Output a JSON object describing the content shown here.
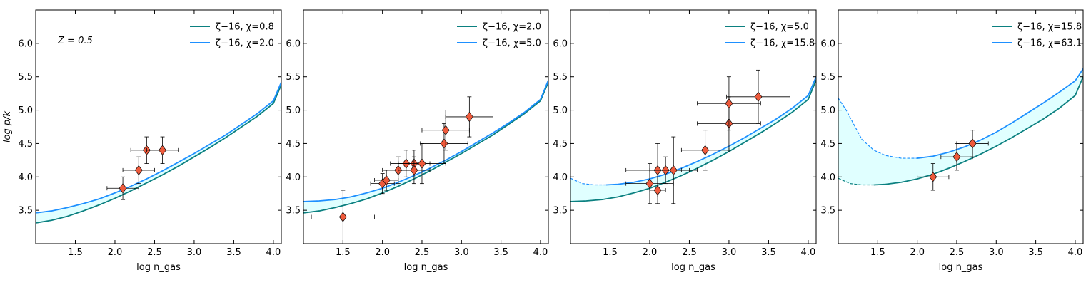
{
  "figure": {
    "ylabel": "log p/k",
    "annotation": "Z = 0.5"
  },
  "chart_data": [
    {
      "type": "line",
      "panel": 1,
      "xlabel": "log n_gas",
      "ylabel": "log p/k",
      "xlim": [
        1.0,
        4.1
      ],
      "ylim": [
        3.0,
        6.5
      ],
      "xticks": [
        "1.5",
        "2.0",
        "2.5",
        "3.0",
        "3.5",
        "4.0"
      ],
      "yticks": [
        "3.5",
        "4.0",
        "4.5",
        "5.0",
        "5.5",
        "6.0"
      ],
      "annotation": "Z = 0.5",
      "series": [
        {
          "name": "ζ−16, χ=0.8",
          "color": "#0b8080",
          "x": [
            1.0,
            1.2,
            1.4,
            1.6,
            1.8,
            2.0,
            2.2,
            2.4,
            2.6,
            2.8,
            3.0,
            3.2,
            3.4,
            3.6,
            3.8,
            4.0,
            4.1
          ],
          "y": [
            3.31,
            3.35,
            3.41,
            3.49,
            3.58,
            3.68,
            3.79,
            3.91,
            4.03,
            4.16,
            4.3,
            4.44,
            4.59,
            4.75,
            4.91,
            5.1,
            5.38
          ]
        },
        {
          "name": "ζ−16, χ=2.0",
          "color": "#1e90ff",
          "x": [
            1.0,
            1.2,
            1.4,
            1.6,
            1.8,
            2.0,
            2.2,
            2.4,
            2.6,
            2.8,
            3.0,
            3.2,
            3.4,
            3.6,
            3.8,
            4.0,
            4.1
          ],
          "y": [
            3.46,
            3.49,
            3.54,
            3.6,
            3.67,
            3.76,
            3.86,
            3.97,
            4.09,
            4.22,
            4.35,
            4.49,
            4.63,
            4.79,
            4.95,
            5.14,
            5.42
          ]
        }
      ],
      "points": [
        {
          "x": 2.1,
          "y": 3.83,
          "xerr": 0.2,
          "yerr": 0.17
        },
        {
          "x": 2.3,
          "y": 4.1,
          "xerr": 0.2,
          "yerr": 0.2
        },
        {
          "x": 2.4,
          "y": 4.4,
          "xerr": 0.2,
          "yerr": 0.2
        },
        {
          "x": 2.6,
          "y": 4.4,
          "xerr": 0.2,
          "yerr": 0.2
        }
      ]
    },
    {
      "type": "line",
      "panel": 2,
      "xlabel": "log n_gas",
      "xlim": [
        1.0,
        4.1
      ],
      "ylim": [
        3.0,
        6.5
      ],
      "xticks": [
        "1.5",
        "2.0",
        "2.5",
        "3.0",
        "3.5",
        "4.0"
      ],
      "yticks": [
        "3.5",
        "4.0",
        "4.5",
        "5.0",
        "5.5",
        "6.0"
      ],
      "series": [
        {
          "name": "ζ−16, χ=2.0",
          "color": "#0b8080",
          "x": [
            1.0,
            1.2,
            1.4,
            1.6,
            1.8,
            2.0,
            2.2,
            2.4,
            2.6,
            2.8,
            3.0,
            3.2,
            3.4,
            3.6,
            3.8,
            4.0,
            4.1
          ],
          "y": [
            3.46,
            3.49,
            3.54,
            3.6,
            3.67,
            3.76,
            3.86,
            3.97,
            4.09,
            4.22,
            4.35,
            4.49,
            4.63,
            4.79,
            4.95,
            5.14,
            5.42
          ]
        },
        {
          "name": "ζ−16, χ=5.0",
          "color": "#1e90ff",
          "x": [
            1.0,
            1.2,
            1.4,
            1.6,
            1.8,
            2.0,
            2.2,
            2.4,
            2.6,
            2.8,
            3.0,
            3.2,
            3.4,
            3.6,
            3.8,
            4.0,
            4.1
          ],
          "y": [
            3.63,
            3.64,
            3.66,
            3.7,
            3.76,
            3.83,
            3.92,
            4.02,
            4.13,
            4.25,
            4.38,
            4.52,
            4.66,
            4.81,
            4.97,
            5.16,
            5.45
          ]
        }
      ],
      "points": [
        {
          "x": 1.5,
          "y": 3.4,
          "xerr": 0.4,
          "yerr": 0.4
        },
        {
          "x": 2.0,
          "y": 3.9,
          "xerr": 0.15,
          "yerr": 0.15
        },
        {
          "x": 2.05,
          "y": 3.95,
          "xerr": 0.15,
          "yerr": 0.15
        },
        {
          "x": 2.2,
          "y": 4.1,
          "xerr": 0.2,
          "yerr": 0.2
        },
        {
          "x": 2.3,
          "y": 4.2,
          "xerr": 0.2,
          "yerr": 0.2
        },
        {
          "x": 2.4,
          "y": 4.2,
          "xerr": 0.2,
          "yerr": 0.2
        },
        {
          "x": 2.4,
          "y": 4.1,
          "xerr": 0.2,
          "yerr": 0.2
        },
        {
          "x": 2.5,
          "y": 4.2,
          "xerr": 0.3,
          "yerr": 0.3
        },
        {
          "x": 2.78,
          "y": 4.5,
          "xerr": 0.3,
          "yerr": 0.3
        },
        {
          "x": 2.8,
          "y": 4.7,
          "xerr": 0.3,
          "yerr": 0.3
        },
        {
          "x": 3.1,
          "y": 4.9,
          "xerr": 0.3,
          "yerr": 0.3
        }
      ]
    },
    {
      "type": "line",
      "panel": 3,
      "xlabel": "log n_gas",
      "xlim": [
        1.0,
        4.1
      ],
      "ylim": [
        3.0,
        6.5
      ],
      "xticks": [
        "1.5",
        "2.0",
        "2.5",
        "3.0",
        "3.5",
        "4.0"
      ],
      "yticks": [
        "3.5",
        "4.0",
        "4.5",
        "5.0",
        "5.5",
        "6.0"
      ],
      "series": [
        {
          "name": "ζ−16, χ=5.0",
          "color": "#0b8080",
          "x": [
            1.0,
            1.2,
            1.4,
            1.6,
            1.8,
            2.0,
            2.2,
            2.4,
            2.6,
            2.8,
            3.0,
            3.2,
            3.4,
            3.6,
            3.8,
            4.0,
            4.1
          ],
          "y": [
            3.63,
            3.64,
            3.66,
            3.7,
            3.76,
            3.83,
            3.92,
            4.02,
            4.13,
            4.25,
            4.38,
            4.52,
            4.66,
            4.81,
            4.97,
            5.16,
            5.45
          ]
        },
        {
          "name": "ζ−16, χ=15.8",
          "color": "#1e90ff",
          "x": [
            1.0,
            1.15,
            1.3,
            1.45,
            1.6,
            1.8,
            2.0,
            2.2,
            2.4,
            2.6,
            2.8,
            3.0,
            3.2,
            3.4,
            3.6,
            3.8,
            4.0,
            4.1
          ],
          "y": [
            3.98,
            3.9,
            3.88,
            3.88,
            3.89,
            3.92,
            3.97,
            4.04,
            4.13,
            4.23,
            4.34,
            4.46,
            4.59,
            4.73,
            4.87,
            5.03,
            5.22,
            5.5
          ],
          "dashed_until_x": 1.45
        }
      ],
      "points": [
        {
          "x": 2.0,
          "y": 3.9,
          "xerr": 0.3,
          "yerr": 0.3
        },
        {
          "x": 2.1,
          "y": 4.1,
          "xerr": 0.4,
          "yerr": 0.4
        },
        {
          "x": 2.1,
          "y": 3.8,
          "xerr": 0.1,
          "yerr": 0.2
        },
        {
          "x": 2.2,
          "y": 4.1,
          "xerr": 0.2,
          "yerr": 0.2
        },
        {
          "x": 2.3,
          "y": 4.1,
          "xerr": 0.3,
          "yerr": 0.5
        },
        {
          "x": 2.7,
          "y": 4.4,
          "xerr": 0.3,
          "yerr": 0.3
        },
        {
          "x": 3.0,
          "y": 4.8,
          "xerr": 0.4,
          "yerr": 0.4
        },
        {
          "x": 3.0,
          "y": 5.1,
          "xerr": 0.4,
          "yerr": 0.4
        },
        {
          "x": 3.37,
          "y": 5.2,
          "xerr": 0.4,
          "yerr": 0.4
        }
      ]
    },
    {
      "type": "line",
      "panel": 4,
      "xlabel": "log n_gas",
      "xlim": [
        1.0,
        4.1
      ],
      "ylim": [
        3.0,
        6.5
      ],
      "xticks": [
        "1.5",
        "2.0",
        "2.5",
        "3.0",
        "3.5",
        "4.0"
      ],
      "yticks": [
        "3.5",
        "4.0",
        "4.5",
        "5.0",
        "5.5",
        "6.0"
      ],
      "series": [
        {
          "name": "ζ−16, χ=15.8",
          "color": "#0b8080",
          "x": [
            1.0,
            1.15,
            1.3,
            1.45,
            1.6,
            1.8,
            2.0,
            2.2,
            2.4,
            2.6,
            2.8,
            3.0,
            3.2,
            3.4,
            3.6,
            3.8,
            4.0,
            4.1
          ],
          "y": [
            3.98,
            3.9,
            3.88,
            3.88,
            3.89,
            3.92,
            3.97,
            4.04,
            4.13,
            4.23,
            4.34,
            4.46,
            4.59,
            4.73,
            4.87,
            5.03,
            5.22,
            5.5
          ],
          "dashed_until_x": 1.45
        },
        {
          "name": "ζ−16, χ=63.1",
          "color": "#1e90ff",
          "x": [
            1.0,
            1.1,
            1.2,
            1.3,
            1.45,
            1.6,
            1.8,
            2.0,
            2.2,
            2.4,
            2.6,
            2.8,
            3.0,
            3.2,
            3.4,
            3.6,
            3.8,
            4.0,
            4.1
          ],
          "y": [
            5.18,
            5.0,
            4.78,
            4.56,
            4.4,
            4.32,
            4.28,
            4.28,
            4.31,
            4.37,
            4.45,
            4.55,
            4.67,
            4.81,
            4.96,
            5.11,
            5.27,
            5.44,
            5.62
          ],
          "dashed_until_x": 2.0
        }
      ],
      "points": [
        {
          "x": 2.2,
          "y": 4.0,
          "xerr": 0.2,
          "yerr": 0.2
        },
        {
          "x": 2.5,
          "y": 4.3,
          "xerr": 0.2,
          "yerr": 0.2
        },
        {
          "x": 2.7,
          "y": 4.5,
          "xerr": 0.2,
          "yerr": 0.2
        }
      ]
    }
  ]
}
